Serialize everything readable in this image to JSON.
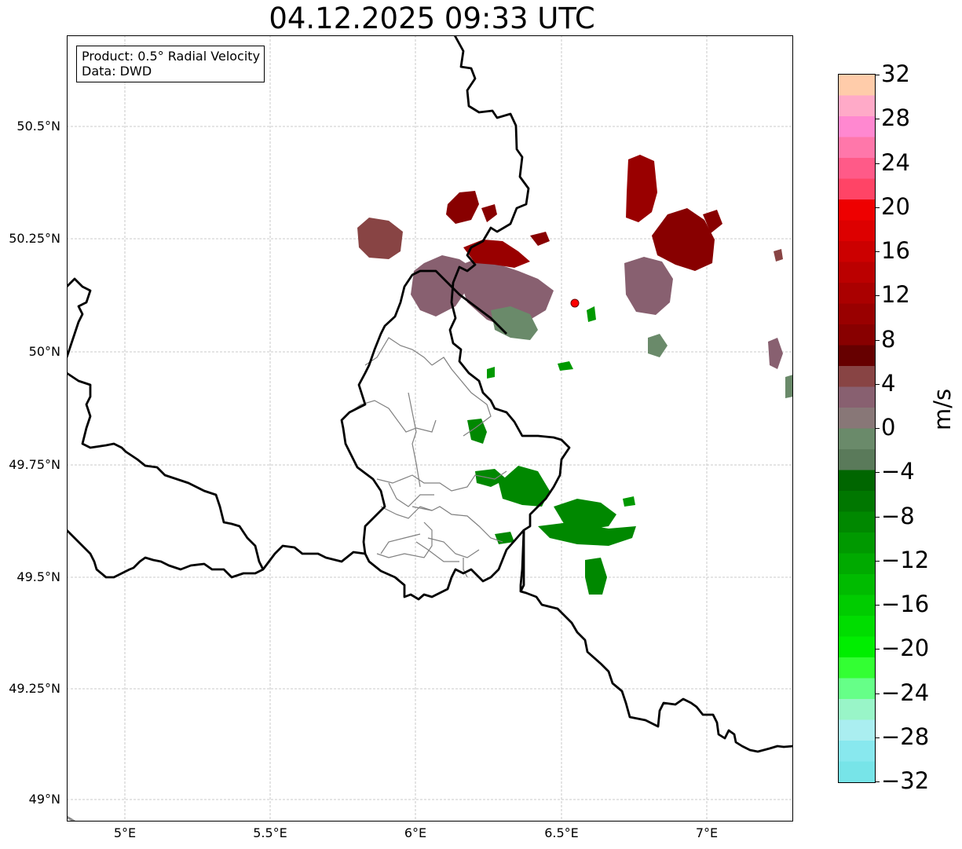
{
  "title": "04.12.2025 09:33 UTC",
  "info": {
    "product": "Product: 0.5° Radial Velocity",
    "source": "Data: DWD"
  },
  "axes": {
    "lat_ticks": [
      "50.5°N",
      "50.25°N",
      "50°N",
      "49.75°N",
      "49.5°N",
      "49.25°N",
      "49°N"
    ],
    "lon_ticks": [
      "5°E",
      "5.5°E",
      "6°E",
      "6.5°E",
      "7°E"
    ]
  },
  "colorbar": {
    "unit": "m/s",
    "ticks": [
      "32",
      "28",
      "24",
      "20",
      "16",
      "12",
      "8",
      "4",
      "0",
      "−4",
      "−8",
      "−12",
      "−16",
      "−20",
      "−24",
      "−28",
      "−32"
    ],
    "colors_top_to_bottom": [
      "#ffccaa",
      "#ffaac8",
      "#ff88d0",
      "#ff77aa",
      "#ff5a88",
      "#ff4466",
      "#ee0000",
      "#dd0000",
      "#cc0000",
      "#bb0000",
      "#aa0000",
      "#990000",
      "#880000",
      "#660000",
      "#884444",
      "#886070",
      "#887777",
      "#6a8a6a",
      "#5a7a5a",
      "#006600",
      "#007700",
      "#008800",
      "#009900",
      "#00aa00",
      "#00bb00",
      "#00cc00",
      "#00dd00",
      "#00ee00",
      "#33ff33",
      "#66ff88",
      "#99f5c8",
      "#aaeef0",
      "#88e8ee",
      "#77e4e8"
    ]
  },
  "map": {
    "radar_site_color": "#ff0000",
    "border_color": "#000000",
    "district_color": "#808080"
  }
}
